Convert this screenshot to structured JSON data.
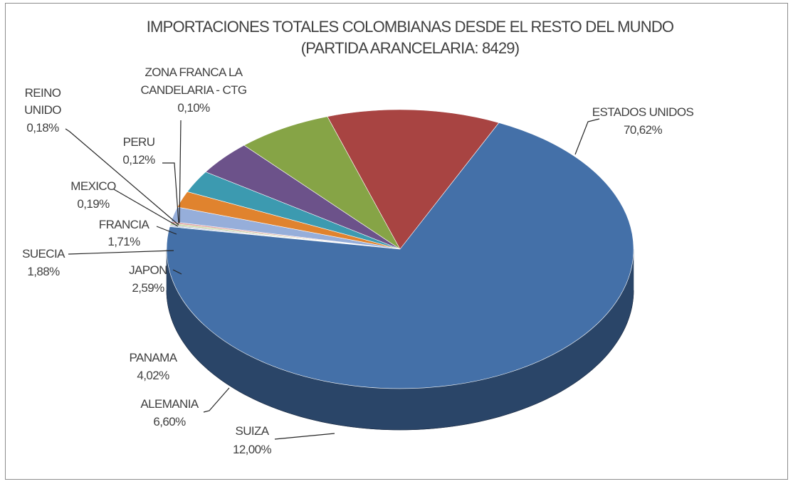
{
  "chart_data": {
    "type": "pie",
    "title": "IMPORTACIONES TOTALES COLOMBIANAS DESDE EL RESTO DEL MUNDO",
    "subtitle": "(PARTIDA ARANCELARIA: 8429)",
    "three_d": true,
    "slices": [
      {
        "name": "ESTADOS UNIDOS",
        "value": 70.62,
        "label": "70,62%",
        "color": "#4470A8"
      },
      {
        "name": "SUIZA",
        "value": 12.0,
        "label": "12,00%",
        "color": "#A84442"
      },
      {
        "name": "ALEMANIA",
        "value": 6.6,
        "label": "6,60%",
        "color": "#86A446"
      },
      {
        "name": "PANAMA",
        "value": 4.02,
        "label": "4,02%",
        "color": "#6C528A"
      },
      {
        "name": "JAPON",
        "value": 2.59,
        "label": "2,59%",
        "color": "#3C9AB0"
      },
      {
        "name": "SUECIA",
        "value": 1.88,
        "label": "1,88%",
        "color": "#E0832E"
      },
      {
        "name": "FRANCIA",
        "value": 1.71,
        "label": "1,71%",
        "color": "#96AEDA"
      },
      {
        "name": "MEXICO",
        "value": 0.19,
        "label": "0,19%",
        "color": "#DC9C9A"
      },
      {
        "name": "REINO UNIDO",
        "value": 0.18,
        "label": "0,18%",
        "color": "#C2D69B"
      },
      {
        "name": "PERU",
        "value": 0.12,
        "label": "0,12%",
        "color": "#B3A2C7"
      },
      {
        "name": "ZONA FRANCA LA CANDELARIA - CTG",
        "value": 0.1,
        "label": "0,10%",
        "color": "#93CDDD"
      }
    ],
    "legend": "none"
  }
}
